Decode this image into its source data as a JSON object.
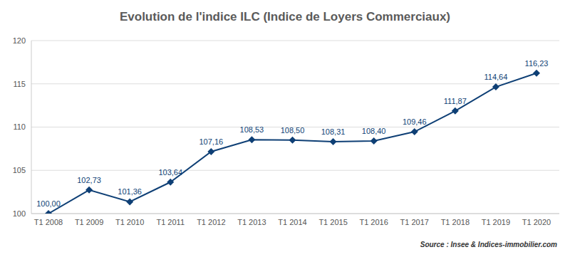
{
  "chart_data": {
    "type": "line",
    "title": "Evolution de l'indice ILC (Indice de Loyers Commerciaux)",
    "annotations": [
      "Source : Insee & Indices-immobilier.com"
    ],
    "categories": [
      "T1 2008",
      "T1 2009",
      "T1 2010",
      "T1 2011",
      "T1 2012",
      "T1 2013",
      "T1 2014",
      "T1 2015",
      "T1 2016",
      "T1 2017",
      "T1 2018",
      "T1 2019",
      "T1 2020"
    ],
    "values": [
      100.0,
      102.73,
      101.36,
      103.64,
      107.16,
      108.53,
      108.5,
      108.31,
      108.4,
      109.46,
      111.87,
      114.64,
      116.23
    ],
    "value_labels": [
      "100,00",
      "102,73",
      "101,36",
      "103,64",
      "107,16",
      "108,53",
      "108,50",
      "108,31",
      "108,40",
      "109,46",
      "111,87",
      "114,64",
      "116,23"
    ],
    "color": "#0e3f75",
    "marker": "diamond",
    "ylim": [
      100,
      120
    ],
    "yticks": [
      100,
      105,
      110,
      115,
      120
    ],
    "grid": true,
    "data_labels": true
  }
}
